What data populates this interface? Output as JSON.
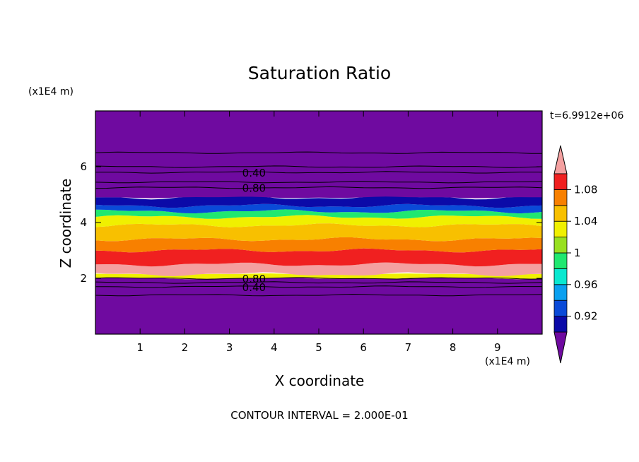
{
  "chart_data": {
    "type": "heatmap",
    "title": "Saturation Ratio",
    "xlabel": "X coordinate",
    "ylabel": "Z coordinate",
    "x_unit": "(x1E4 m)",
    "y_unit": "(x1E4 m)",
    "xlim": [
      0,
      10
    ],
    "ylim": [
      0,
      8
    ],
    "x_ticks": [
      "1",
      "2",
      "3",
      "4",
      "5",
      "6",
      "7",
      "8",
      "9"
    ],
    "y_ticks": [
      "2",
      "4",
      "6"
    ],
    "time_label": "t=6.9912e+06",
    "footer": "CONTOUR INTERVAL = 2.000E-01",
    "colorbar": {
      "labels": [
        "0.92",
        "0.96",
        "1",
        "1.04",
        "1.08"
      ],
      "levels": [
        0.9,
        0.92,
        0.94,
        0.96,
        0.98,
        1.0,
        1.02,
        1.04,
        1.06,
        1.08,
        1.1
      ],
      "colors": [
        "#6f0aa0",
        "#0b0aa8",
        "#0a4ad8",
        "#0aa0f0",
        "#0ae8d0",
        "#20e870",
        "#98e020",
        "#f0f000",
        "#f8c000",
        "#f88000",
        "#f02020",
        "#f4a0a0"
      ]
    },
    "bands": [
      {
        "z": [
          0.0,
          2.0
        ],
        "level": "<0.90"
      },
      {
        "z": [
          2.0,
          2.15
        ],
        "level": "1.02-1.04"
      },
      {
        "z": [
          2.15,
          2.5
        ],
        "level": ">1.10"
      },
      {
        "z": [
          2.5,
          3.0
        ],
        "level": "1.06-1.10"
      },
      {
        "z": [
          3.0,
          3.4
        ],
        "level": "1.04-1.08"
      },
      {
        "z": [
          3.4,
          3.9
        ],
        "level": "1.04-1.06"
      },
      {
        "z": [
          3.9,
          4.2
        ],
        "level": "1.02-1.04"
      },
      {
        "z": [
          4.2,
          4.4
        ],
        "level": "0.98-1.02"
      },
      {
        "z": [
          4.4,
          4.6
        ],
        "level": "0.94-0.98"
      },
      {
        "z": [
          4.6,
          4.9
        ],
        "level": "0.90-0.94"
      },
      {
        "z": [
          4.9,
          8.0
        ],
        "level": "<0.90"
      }
    ],
    "contour_lines": [
      {
        "z": 6.5,
        "label": ""
      },
      {
        "z": 6.0,
        "label": ""
      },
      {
        "z": 5.8,
        "label": "0.40"
      },
      {
        "z": 5.45,
        "label": ""
      },
      {
        "z": 5.25,
        "label": "0.80"
      },
      {
        "z": 2.0,
        "label": "0.80"
      },
      {
        "z": 1.85,
        "label": ""
      },
      {
        "z": 1.7,
        "label": "0.40"
      },
      {
        "z": 1.4,
        "label": ""
      }
    ]
  }
}
